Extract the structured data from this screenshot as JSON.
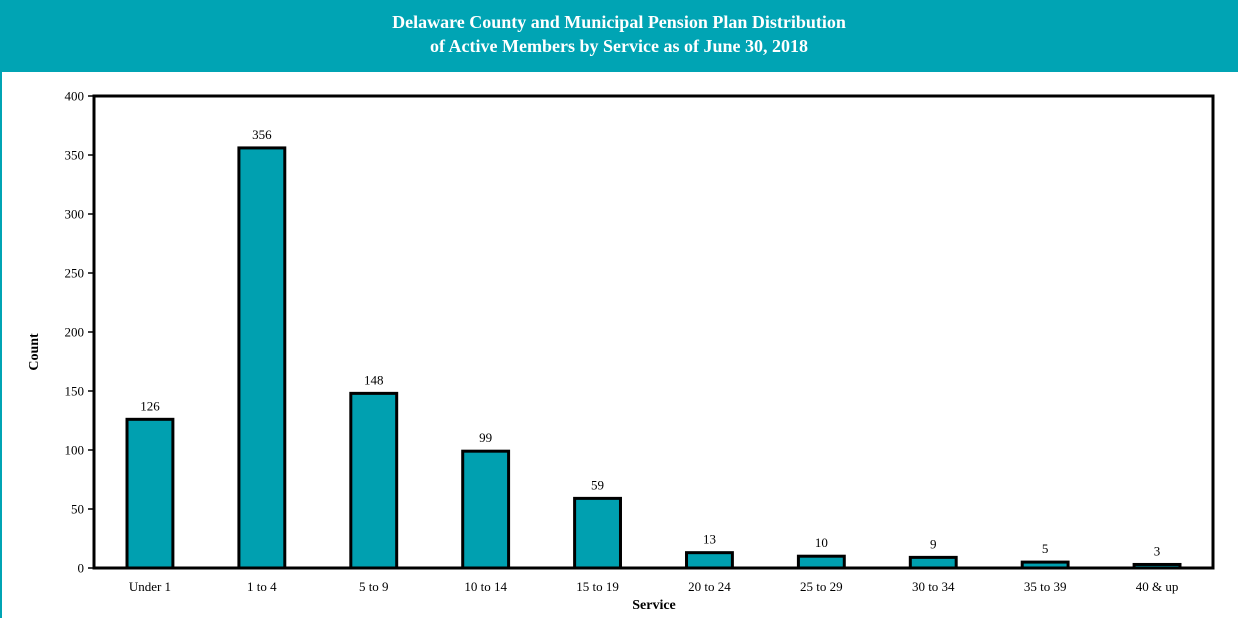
{
  "colors": {
    "accent": "#00a4b4",
    "bar_fill": "#00a0b0",
    "bar_stroke": "#000000"
  },
  "chart_data": {
    "type": "bar",
    "title": "Delaware County and Municipal Pension Plan Distribution",
    "subtitle": "of Active Members by Service as of June 30, 2018",
    "xlabel": "Service",
    "ylabel": "Count",
    "ylim": [
      0,
      400
    ],
    "yticks": [
      0,
      50,
      100,
      150,
      200,
      250,
      300,
      350,
      400
    ],
    "grid": false,
    "legend": "none",
    "categories": [
      "Under 1",
      "1 to 4",
      "5 to 9",
      "10 to 14",
      "15 to 19",
      "20 to 24",
      "25 to 29",
      "30 to 34",
      "35 to 39",
      "40 & up"
    ],
    "values": [
      126,
      356,
      148,
      99,
      59,
      13,
      10,
      9,
      5,
      3
    ]
  }
}
